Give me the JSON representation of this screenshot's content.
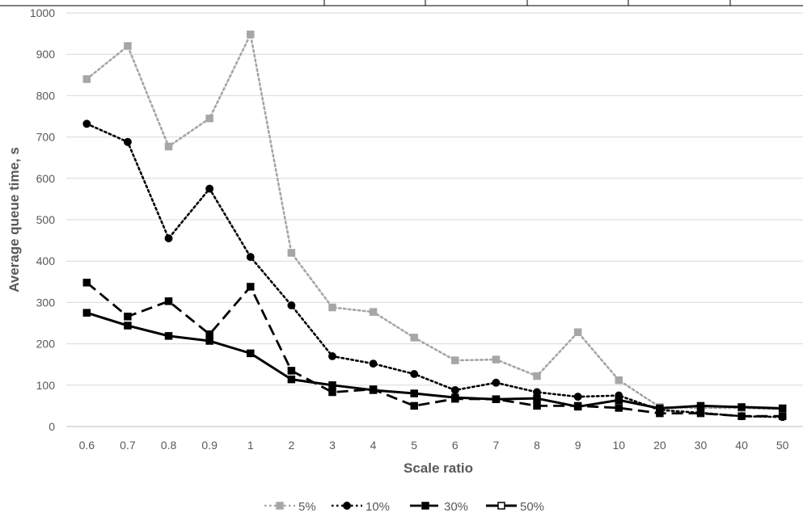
{
  "chart_data": {
    "type": "line",
    "categories": [
      "0.6",
      "0.7",
      "0.8",
      "0.9",
      "1",
      "2",
      "3",
      "4",
      "5",
      "6",
      "7",
      "8",
      "9",
      "10",
      "20",
      "30",
      "40",
      "50"
    ],
    "series": [
      {
        "name": "5%",
        "color": "#a6a6a6",
        "dash": "dotted",
        "marker": "square",
        "values": [
          840,
          920,
          677,
          745,
          948,
          420,
          288,
          277,
          215,
          160,
          162,
          122,
          228,
          112,
          47,
          45,
          45,
          42
        ]
      },
      {
        "name": "10%",
        "color": "#000000",
        "dash": "dotted",
        "marker": "circle",
        "values": [
          732,
          688,
          455,
          575,
          410,
          293,
          170,
          152,
          127,
          88,
          106,
          83,
          72,
          75,
          40,
          33,
          25,
          23
        ]
      },
      {
        "name": "30%",
        "color": "#000000",
        "dash": "dashed",
        "marker": "square",
        "values": [
          348,
          266,
          303,
          223,
          338,
          135,
          83,
          90,
          50,
          67,
          66,
          50,
          50,
          45,
          32,
          32,
          25,
          25
        ]
      },
      {
        "name": "50%",
        "color": "#000000",
        "dash": "solid",
        "marker": "square",
        "values": [
          275,
          244,
          219,
          207,
          177,
          114,
          100,
          88,
          80,
          70,
          66,
          68,
          48,
          64,
          44,
          50,
          47,
          44
        ]
      }
    ],
    "xlabel": "Scale ratio",
    "ylabel": "Average queue time, s",
    "ylim": [
      0,
      1000
    ],
    "yticks": [
      "0",
      "100",
      "200",
      "300",
      "400",
      "500",
      "600",
      "700",
      "800",
      "900",
      "1000"
    ],
    "grid": true,
    "legend_position": "bottom"
  }
}
